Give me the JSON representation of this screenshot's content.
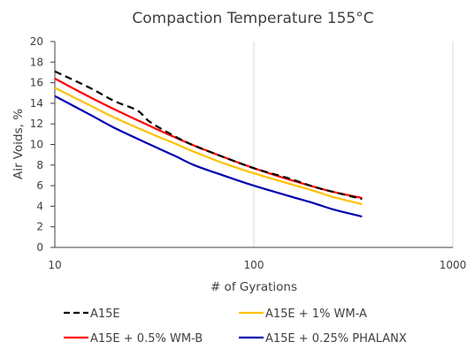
{
  "chart_data": {
    "type": "line",
    "title": "Compaction Temperature 155°C",
    "xlabel": "# of Gyrations",
    "ylabel": "Air Voids, %",
    "x_scale": "log",
    "xlim": [
      10,
      1000
    ],
    "ylim": [
      0,
      20
    ],
    "x_ticks": [
      10,
      100,
      1000
    ],
    "x_tick_labels": [
      "10",
      "100",
      "1000"
    ],
    "y_ticks": [
      0,
      2,
      4,
      6,
      8,
      10,
      12,
      14,
      16,
      18,
      20
    ],
    "y_tick_labels": [
      "0",
      "2",
      "4",
      "6",
      "8",
      "10",
      "12",
      "14",
      "16",
      "18",
      "20"
    ],
    "grid": "vertical lines at x ticks",
    "legend_position": "bottom",
    "series": [
      {
        "name": "A15E",
        "color": "#000000",
        "dash": "dashed",
        "x": [
          10,
          15,
          20,
          26,
          30,
          40,
          50,
          70,
          100,
          150,
          200,
          250,
          350
        ],
        "y": [
          17.1,
          15.5,
          14.2,
          13.3,
          12.2,
          10.8,
          9.9,
          8.8,
          7.7,
          6.7,
          5.9,
          5.4,
          4.7
        ]
      },
      {
        "name": "A15E + 1% WM-A",
        "color": "#ffc000",
        "dash": "solid",
        "x": [
          10,
          15,
          20,
          30,
          40,
          50,
          70,
          100,
          150,
          200,
          250,
          350
        ],
        "y": [
          15.5,
          13.8,
          12.6,
          11.1,
          10.1,
          9.3,
          8.2,
          7.2,
          6.2,
          5.5,
          4.9,
          4.2
        ]
      },
      {
        "name": "A15E + 0.5% WM-B",
        "color": "#ff0000",
        "dash": "solid",
        "x": [
          10,
          15,
          20,
          30,
          40,
          50,
          70,
          100,
          150,
          200,
          250,
          350
        ],
        "y": [
          16.4,
          14.6,
          13.4,
          11.8,
          10.7,
          9.9,
          8.8,
          7.7,
          6.6,
          5.9,
          5.4,
          4.8
        ]
      },
      {
        "name": "A15E + 0.25% PHALANX",
        "color": "#0000b0",
        "dash": "solid",
        "x": [
          10,
          15,
          20,
          30,
          40,
          50,
          70,
          100,
          150,
          200,
          250,
          350
        ],
        "y": [
          14.7,
          12.9,
          11.6,
          10.0,
          8.9,
          8.0,
          7.0,
          6.0,
          5.0,
          4.3,
          3.7,
          3.0
        ]
      }
    ]
  }
}
